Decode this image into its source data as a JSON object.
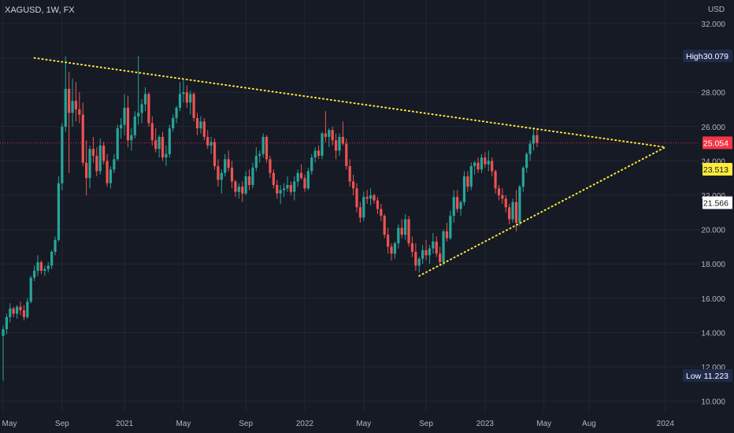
{
  "header": {
    "symbol": "XAGUSD, 1W, FX",
    "currency": "USD"
  },
  "chart_data": {
    "type": "candlestick",
    "symbol": "XAGUSD",
    "interval": "1W",
    "ylim": [
      9.6,
      32.5
    ],
    "y_ticks": [
      "10.000",
      "12.000",
      "14.000",
      "16.000",
      "18.000",
      "20.000",
      "22.000",
      "24.000",
      "26.000",
      "28.000",
      "30.000",
      "32.000"
    ],
    "x_ticks": [
      "May",
      "Sep",
      "2021",
      "May",
      "Sep",
      "2022",
      "May",
      "Sep",
      "2023",
      "May",
      "Aug",
      "2024"
    ],
    "x_tick_weeks": [
      0,
      17,
      35,
      52,
      70,
      87,
      104,
      122,
      139,
      156,
      169,
      191
    ],
    "price_labels": {
      "high": {
        "label": "High",
        "value": "30.079"
      },
      "low": {
        "label": "Low",
        "value": "11.223"
      },
      "current": {
        "value": "25.054",
        "color": "#f23645"
      },
      "yellow": {
        "value": "23.513",
        "color": "#ffeb3b"
      },
      "white": {
        "value": "21.566",
        "color": "#ffffff"
      }
    },
    "trendlines": [
      {
        "name": "upper-resistance",
        "from": [
          9,
          30.0
        ],
        "to": [
          191,
          24.8
        ],
        "color": "#ffeb3b",
        "style": "dotted"
      },
      {
        "name": "lower-support",
        "from": [
          120,
          17.3
        ],
        "to": [
          191,
          24.8
        ],
        "color": "#ffeb3b",
        "style": "dotted"
      }
    ],
    "current_price_line": 25.05,
    "up_color": "#26a69a",
    "down_color": "#ef5350",
    "candles": [
      [
        13.8,
        14.4,
        11.2,
        14.2
      ],
      [
        14.2,
        15.1,
        13.9,
        14.9
      ],
      [
        14.9,
        15.7,
        14.6,
        15.4
      ],
      [
        15.4,
        15.5,
        14.9,
        15.1
      ],
      [
        15.1,
        15.6,
        14.8,
        15.5
      ],
      [
        15.5,
        15.8,
        15.0,
        15.3
      ],
      [
        15.3,
        15.6,
        14.7,
        14.9
      ],
      [
        14.9,
        16.0,
        14.8,
        15.8
      ],
      [
        15.8,
        17.3,
        15.7,
        17.2
      ],
      [
        17.2,
        17.9,
        17.0,
        17.6
      ],
      [
        17.6,
        18.5,
        17.3,
        18.1
      ],
      [
        18.1,
        18.2,
        17.4,
        17.6
      ],
      [
        17.6,
        17.9,
        17.3,
        17.7
      ],
      [
        17.7,
        18.1,
        17.5,
        17.9
      ],
      [
        17.9,
        18.8,
        17.7,
        18.7
      ],
      [
        18.7,
        19.6,
        18.5,
        19.4
      ],
      [
        19.4,
        23.1,
        19.3,
        22.7
      ],
      [
        22.7,
        26.2,
        22.3,
        26.0
      ],
      [
        26.0,
        30.1,
        25.7,
        28.2
      ],
      [
        28.2,
        29.2,
        23.3,
        26.8
      ],
      [
        26.8,
        28.8,
        26.0,
        27.5
      ],
      [
        27.5,
        28.6,
        26.3,
        27.0
      ],
      [
        27.0,
        28.0,
        26.2,
        26.7
      ],
      [
        26.7,
        27.4,
        23.7,
        23.9
      ],
      [
        23.9,
        25.2,
        22.0,
        23.0
      ],
      [
        23.0,
        24.9,
        22.4,
        24.7
      ],
      [
        24.7,
        25.4,
        23.9,
        24.3
      ],
      [
        24.3,
        24.8,
        23.1,
        23.4
      ],
      [
        23.4,
        25.3,
        23.2,
        24.9
      ],
      [
        24.9,
        25.1,
        23.8,
        24.0
      ],
      [
        24.0,
        24.4,
        22.5,
        22.7
      ],
      [
        22.7,
        23.7,
        22.4,
        23.5
      ],
      [
        23.5,
        24.4,
        23.3,
        24.1
      ],
      [
        24.1,
        26.1,
        24.0,
        25.9
      ],
      [
        25.9,
        26.5,
        25.3,
        26.1
      ],
      [
        26.1,
        27.9,
        25.5,
        27.1
      ],
      [
        27.1,
        27.8,
        24.8,
        25.2
      ],
      [
        25.2,
        25.9,
        24.6,
        25.5
      ],
      [
        25.5,
        26.9,
        25.3,
        26.6
      ],
      [
        26.6,
        30.1,
        26.1,
        26.8
      ],
      [
        26.8,
        27.6,
        26.2,
        27.3
      ],
      [
        27.3,
        28.3,
        26.9,
        27.9
      ],
      [
        27.9,
        28.0,
        26.0,
        26.2
      ],
      [
        26.2,
        26.6,
        24.9,
        25.2
      ],
      [
        25.2,
        25.9,
        24.5,
        24.7
      ],
      [
        24.7,
        25.5,
        24.2,
        25.4
      ],
      [
        25.4,
        25.7,
        24.0,
        24.2
      ],
      [
        24.2,
        24.9,
        23.7,
        24.4
      ],
      [
        24.4,
        26.1,
        24.2,
        25.9
      ],
      [
        25.9,
        26.7,
        25.7,
        26.5
      ],
      [
        26.5,
        27.2,
        26.2,
        27.1
      ],
      [
        27.1,
        28.6,
        26.9,
        27.9
      ],
      [
        27.9,
        28.7,
        27.4,
        28.0
      ],
      [
        28.0,
        28.4,
        27.1,
        27.4
      ],
      [
        27.4,
        28.1,
        26.7,
        27.9
      ],
      [
        27.9,
        28.0,
        26.3,
        26.5
      ],
      [
        26.5,
        26.8,
        25.5,
        25.9
      ],
      [
        25.9,
        26.6,
        25.6,
        26.3
      ],
      [
        26.3,
        26.5,
        25.2,
        25.4
      ],
      [
        25.4,
        25.8,
        24.7,
        24.9
      ],
      [
        24.9,
        25.4,
        24.4,
        25.1
      ],
      [
        25.1,
        25.3,
        23.5,
        23.7
      ],
      [
        23.7,
        24.1,
        22.5,
        22.9
      ],
      [
        22.9,
        23.5,
        22.1,
        23.3
      ],
      [
        23.3,
        24.4,
        23.1,
        24.1
      ],
      [
        24.1,
        24.6,
        23.4,
        23.6
      ],
      [
        23.6,
        24.0,
        22.4,
        22.8
      ],
      [
        22.8,
        22.9,
        21.9,
        22.2
      ],
      [
        22.2,
        22.7,
        21.8,
        22.5
      ],
      [
        22.5,
        22.8,
        21.6,
        22.1
      ],
      [
        22.1,
        23.4,
        22.0,
        23.1
      ],
      [
        23.1,
        23.5,
        22.3,
        22.6
      ],
      [
        22.6,
        23.9,
        22.4,
        23.6
      ],
      [
        23.6,
        24.8,
        23.4,
        24.3
      ],
      [
        24.3,
        24.6,
        23.9,
        24.4
      ],
      [
        24.4,
        25.6,
        24.2,
        25.4
      ],
      [
        25.4,
        25.5,
        23.9,
        24.1
      ],
      [
        24.1,
        24.3,
        23.0,
        23.3
      ],
      [
        23.3,
        23.5,
        22.4,
        22.6
      ],
      [
        22.6,
        22.9,
        21.8,
        22.1
      ],
      [
        22.1,
        22.6,
        21.5,
        22.3
      ],
      [
        22.3,
        22.7,
        21.9,
        22.4
      ],
      [
        22.4,
        23.1,
        22.2,
        22.6
      ],
      [
        22.6,
        22.8,
        22.0,
        22.2
      ],
      [
        22.2,
        23.1,
        21.7,
        22.8
      ],
      [
        22.8,
        23.5,
        22.5,
        23.3
      ],
      [
        23.3,
        23.8,
        22.9,
        23.0
      ],
      [
        23.0,
        23.2,
        22.2,
        22.4
      ],
      [
        22.4,
        23.6,
        22.3,
        23.4
      ],
      [
        23.4,
        24.4,
        23.2,
        24.2
      ],
      [
        24.2,
        24.8,
        23.9,
        24.6
      ],
      [
        24.6,
        24.9,
        24.1,
        24.3
      ],
      [
        24.3,
        25.7,
        24.1,
        25.6
      ],
      [
        25.6,
        26.9,
        25.1,
        25.4
      ],
      [
        25.4,
        25.9,
        24.8,
        25.8
      ],
      [
        25.8,
        26.0,
        24.9,
        25.2
      ],
      [
        25.2,
        25.6,
        24.1,
        24.6
      ],
      [
        24.6,
        25.6,
        24.3,
        25.4
      ],
      [
        25.4,
        26.3,
        24.9,
        25.0
      ],
      [
        25.0,
        25.3,
        23.5,
        23.7
      ],
      [
        23.7,
        24.1,
        22.5,
        22.8
      ],
      [
        22.8,
        23.2,
        22.0,
        22.4
      ],
      [
        22.4,
        22.7,
        21.0,
        21.3
      ],
      [
        21.3,
        21.6,
        20.4,
        20.7
      ],
      [
        20.7,
        22.2,
        20.5,
        21.9
      ],
      [
        21.9,
        22.3,
        21.5,
        21.8
      ],
      [
        21.8,
        22.4,
        21.4,
        22.0
      ],
      [
        22.0,
        22.1,
        21.5,
        21.7
      ],
      [
        21.7,
        21.9,
        20.9,
        21.2
      ],
      [
        21.2,
        21.5,
        20.5,
        20.8
      ],
      [
        20.8,
        20.9,
        19.5,
        19.7
      ],
      [
        19.7,
        20.1,
        18.6,
        19.0
      ],
      [
        19.0,
        19.2,
        18.2,
        18.6
      ],
      [
        18.6,
        19.3,
        18.3,
        19.2
      ],
      [
        19.2,
        20.3,
        18.9,
        20.1
      ],
      [
        20.1,
        20.6,
        19.5,
        19.7
      ],
      [
        19.7,
        20.9,
        19.4,
        20.6
      ],
      [
        20.6,
        20.8,
        19.0,
        19.2
      ],
      [
        19.2,
        19.6,
        18.4,
        18.7
      ],
      [
        18.7,
        19.2,
        17.6,
        17.9
      ],
      [
        17.9,
        18.4,
        17.5,
        18.3
      ],
      [
        18.3,
        19.1,
        18.0,
        18.8
      ],
      [
        18.8,
        19.4,
        18.2,
        18.5
      ],
      [
        18.5,
        19.1,
        18.0,
        18.9
      ],
      [
        18.9,
        19.8,
        18.6,
        19.3
      ],
      [
        19.3,
        19.6,
        18.4,
        18.6
      ],
      [
        18.6,
        19.0,
        17.9,
        18.1
      ],
      [
        18.1,
        20.0,
        17.9,
        19.9
      ],
      [
        19.9,
        20.4,
        19.3,
        19.5
      ],
      [
        19.5,
        21.1,
        19.4,
        20.8
      ],
      [
        20.8,
        22.3,
        20.4,
        21.9
      ],
      [
        21.9,
        22.3,
        21.0,
        21.2
      ],
      [
        21.2,
        21.7,
        20.8,
        21.6
      ],
      [
        21.6,
        23.4,
        21.4,
        23.1
      ],
      [
        23.1,
        23.4,
        22.2,
        22.5
      ],
      [
        22.5,
        23.9,
        22.3,
        23.7
      ],
      [
        23.7,
        24.0,
        23.2,
        23.9
      ],
      [
        23.9,
        24.2,
        23.3,
        23.5
      ],
      [
        23.5,
        24.4,
        23.3,
        24.2
      ],
      [
        24.2,
        24.5,
        23.6,
        23.8
      ],
      [
        23.8,
        24.6,
        23.4,
        24.0
      ],
      [
        24.0,
        24.2,
        23.1,
        23.4
      ],
      [
        23.4,
        23.5,
        22.1,
        22.4
      ],
      [
        22.4,
        22.6,
        21.7,
        22.0
      ],
      [
        22.0,
        22.4,
        21.5,
        21.8
      ],
      [
        21.8,
        22.0,
        21.0,
        21.3
      ],
      [
        21.3,
        21.5,
        20.3,
        20.6
      ],
      [
        20.6,
        21.8,
        20.4,
        21.6
      ],
      [
        21.6,
        22.3,
        19.9,
        20.4
      ],
      [
        20.4,
        22.6,
        20.2,
        22.5
      ],
      [
        22.5,
        23.7,
        22.2,
        23.6
      ],
      [
        23.6,
        24.5,
        23.3,
        24.4
      ],
      [
        24.4,
        25.2,
        24.0,
        25.0
      ],
      [
        25.0,
        25.9,
        24.6,
        25.5
      ],
      [
        25.5,
        25.8,
        24.8,
        25.05
      ]
    ]
  }
}
